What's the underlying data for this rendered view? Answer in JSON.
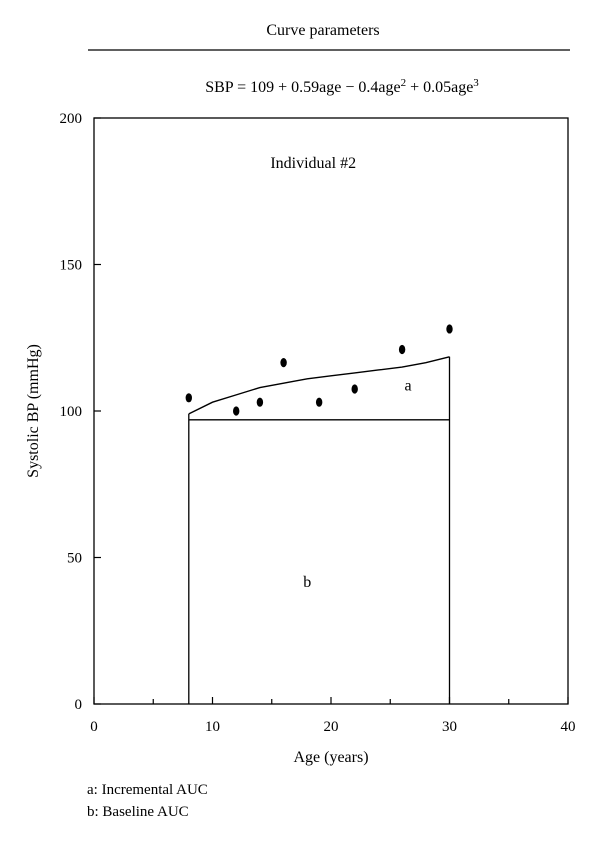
{
  "header": {
    "title": "Curve parameters",
    "equation": {
      "lhs": "SBP",
      "eq": "=",
      "c0": "109",
      "plus1": "+",
      "t1": "0.59age",
      "minus": "−",
      "t2": "0.4age",
      "sup2": "2",
      "plus2": "+",
      "t3": "0.05age",
      "sup3": "3"
    }
  },
  "chart_data": {
    "type": "line",
    "title": "Individual #2",
    "xlabel": "Age (years)",
    "ylabel": "Systolic BP (mmHg)",
    "xlim": [
      0,
      40
    ],
    "ylim": [
      0,
      200
    ],
    "xticks": [
      0,
      10,
      20,
      30,
      40
    ],
    "xticks_minor": [
      5,
      15,
      25,
      35
    ],
    "yticks": [
      0,
      50,
      100,
      150,
      200
    ],
    "grid": false,
    "observations": {
      "x": [
        8,
        12,
        14,
        16,
        19,
        22,
        26,
        30
      ],
      "y": [
        104.5,
        100,
        103,
        116.5,
        103,
        107.5,
        121,
        128
      ]
    },
    "fitted_curve": {
      "x": [
        8,
        10,
        12,
        14,
        16,
        18,
        20,
        22,
        24,
        26,
        28,
        30
      ],
      "y": [
        99,
        103,
        105.5,
        108,
        109.5,
        111,
        112,
        113,
        114,
        115,
        116.5,
        118.5
      ]
    },
    "baseline_value": 97,
    "auc_range": [
      8,
      30
    ],
    "annotations": [
      {
        "text": "a",
        "x": 26.5,
        "y": 107
      },
      {
        "text": "b",
        "x": 18,
        "y": 40
      }
    ]
  },
  "legend": {
    "items": [
      "a: Incremental AUC",
      "b: Baseline AUC"
    ]
  }
}
